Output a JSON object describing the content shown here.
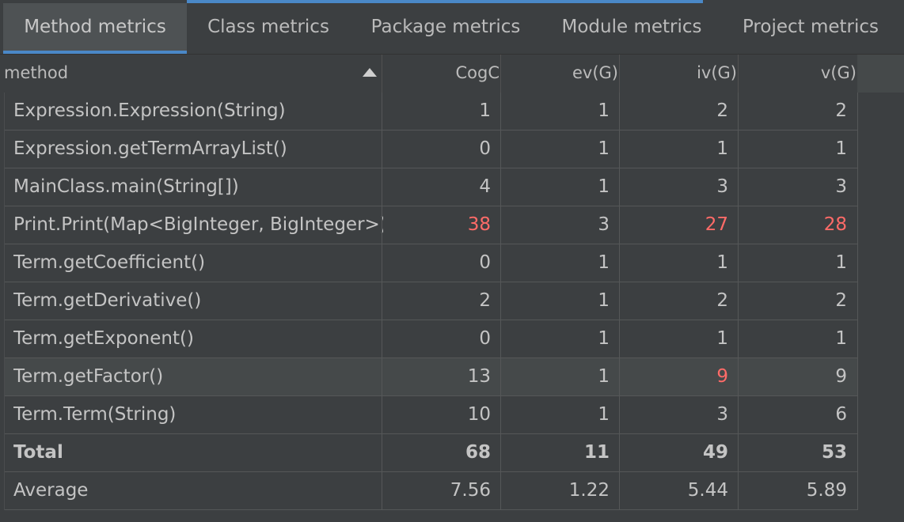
{
  "tabs": [
    {
      "label": "Method metrics",
      "active": true
    },
    {
      "label": "Class metrics",
      "active": false
    },
    {
      "label": "Package metrics",
      "active": false
    },
    {
      "label": "Module metrics",
      "active": false
    },
    {
      "label": "Project metrics",
      "active": false
    }
  ],
  "columns": [
    "method",
    "CogC",
    "ev(G)",
    "iv(G)",
    "v(G)"
  ],
  "sort": {
    "column": "method",
    "direction": "ascending"
  },
  "rows": [
    {
      "method": "Expression.Expression(String)",
      "cogc": "1",
      "evg": "1",
      "ivg": "2",
      "vg": "2"
    },
    {
      "method": "Expression.getTermArrayList()",
      "cogc": "0",
      "evg": "1",
      "ivg": "1",
      "vg": "1"
    },
    {
      "method": "MainClass.main(String[])",
      "cogc": "4",
      "evg": "1",
      "ivg": "3",
      "vg": "3"
    },
    {
      "method": "Print.Print(Map<BigInteger, BigInteger>)",
      "cogc": "38",
      "evg": "3",
      "ivg": "27",
      "vg": "28"
    },
    {
      "method": "Term.getCoefficient()",
      "cogc": "0",
      "evg": "1",
      "ivg": "1",
      "vg": "1"
    },
    {
      "method": "Term.getDerivative()",
      "cogc": "2",
      "evg": "1",
      "ivg": "2",
      "vg": "2"
    },
    {
      "method": "Term.getExponent()",
      "cogc": "0",
      "evg": "1",
      "ivg": "1",
      "vg": "1"
    },
    {
      "method": "Term.getFactor()",
      "cogc": "13",
      "evg": "1",
      "ivg": "9",
      "vg": "9"
    },
    {
      "method": "Term.Term(String)",
      "cogc": "10",
      "evg": "1",
      "ivg": "3",
      "vg": "6"
    }
  ],
  "total": {
    "label": "Total",
    "cogc": "68",
    "evg": "11",
    "ivg": "49",
    "vg": "53"
  },
  "average": {
    "label": "Average",
    "cogc": "7.56",
    "evg": "1.22",
    "ivg": "5.44",
    "vg": "5.89"
  },
  "highlights": {
    "color": "#ff6b68",
    "cells": [
      {
        "row": 3,
        "column": "cogc"
      },
      {
        "row": 3,
        "column": "ivg"
      },
      {
        "row": 3,
        "column": "vg"
      },
      {
        "row": 7,
        "column": "ivg"
      }
    ]
  },
  "selected_row": 7,
  "colors": {
    "accent": "#4a88c7",
    "background": "#3c3f41",
    "selected_row": "#45494a",
    "text": "#bbbbbb"
  }
}
